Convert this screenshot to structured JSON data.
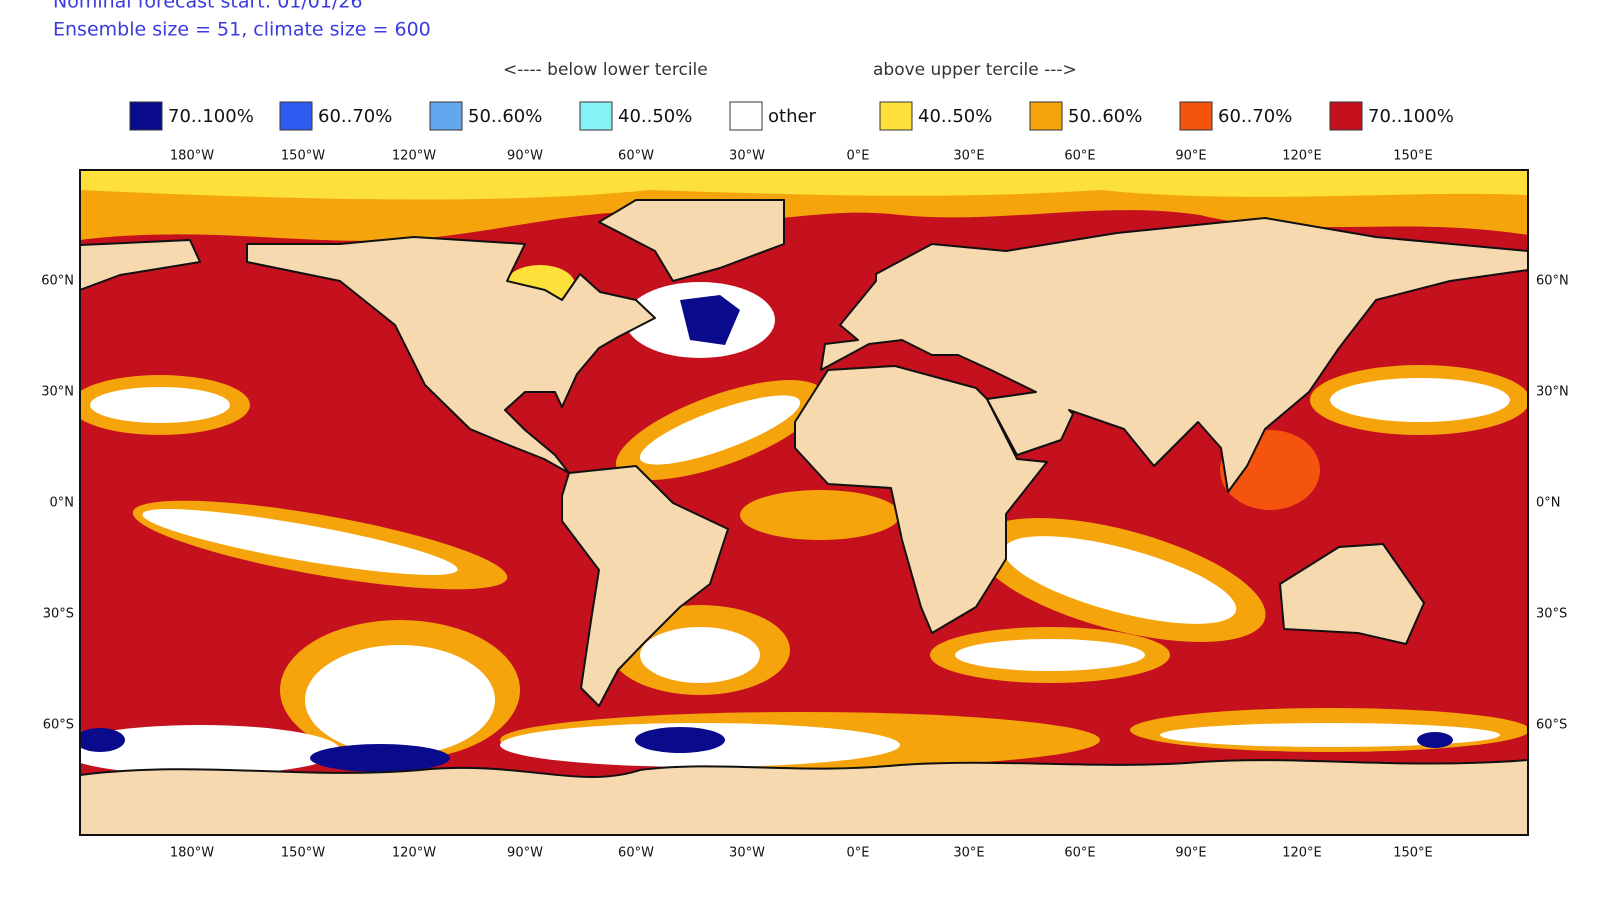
{
  "header": {
    "forecast_start": "Nominal forecast start: 01/01/26",
    "ensemble": "Ensemble size = 51, climate size = 600"
  },
  "legend": {
    "below": "<---- below lower tercile",
    "above": "above upper tercile --->",
    "items": [
      {
        "label": "70..100%",
        "color": "#0a0a8c"
      },
      {
        "label": "60..70%",
        "color": "#2f5cf0"
      },
      {
        "label": "50..60%",
        "color": "#62a8ef"
      },
      {
        "label": "40..50%",
        "color": "#86f2f6"
      },
      {
        "label": "other",
        "color": "#ffffff"
      },
      {
        "label": "40..50%",
        "color": "#fde03a"
      },
      {
        "label": "50..60%",
        "color": "#f5a40c"
      },
      {
        "label": "60..70%",
        "color": "#f5540e"
      },
      {
        "label": "70..100%",
        "color": "#c5101e"
      }
    ]
  },
  "map": {
    "lon_labels": [
      "180°W",
      "150°W",
      "120°W",
      "90°W",
      "60°W",
      "30°W",
      "0°E",
      "30°E",
      "60°E",
      "90°E",
      "120°E",
      "150°E"
    ],
    "lat_labels": [
      "60°N",
      "30°N",
      "0°N",
      "30°S",
      "60°S"
    ]
  }
}
